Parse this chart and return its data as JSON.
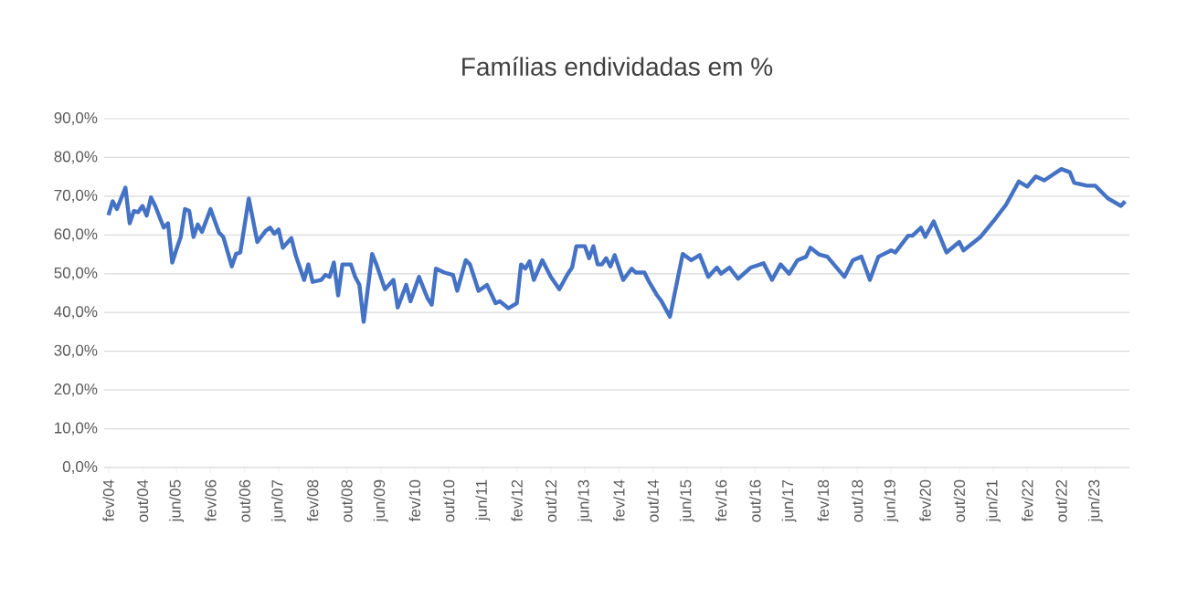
{
  "chart_data": {
    "type": "line",
    "title": "Famílias endividadas em %",
    "x": [
      "2004-02",
      "2004-03",
      "2004-04",
      "2004-06",
      "2004-07",
      "2004-08",
      "2004-09",
      "2004-10",
      "2004-11",
      "2004-12",
      "2005-01",
      "2005-03",
      "2005-04",
      "2005-05",
      "2005-06",
      "2005-07",
      "2005-08",
      "2005-09",
      "2005-10",
      "2005-11",
      "2005-12",
      "2006-02",
      "2006-04",
      "2006-05",
      "2006-07",
      "2006-08",
      "2006-09",
      "2006-11",
      "2007-01",
      "2007-03",
      "2007-04",
      "2007-05",
      "2007-06",
      "2007-07",
      "2007-09",
      "2007-10",
      "2007-12",
      "2008-01",
      "2008-02",
      "2008-04",
      "2008-05",
      "2008-06",
      "2008-07",
      "2008-08",
      "2008-09",
      "2008-11",
      "2008-12",
      "2009-01",
      "2009-02",
      "2009-04",
      "2009-05",
      "2009-07",
      "2009-09",
      "2009-10",
      "2009-12",
      "2010-01",
      "2010-03",
      "2010-05",
      "2010-06",
      "2010-07",
      "2010-09",
      "2010-11",
      "2010-12",
      "2011-02",
      "2011-03",
      "2011-05",
      "2011-07",
      "2011-09",
      "2011-10",
      "2011-12",
      "2012-02",
      "2012-03",
      "2012-04",
      "2012-05",
      "2012-06",
      "2012-08",
      "2012-10",
      "2012-12",
      "2013-02",
      "2013-03",
      "2013-04",
      "2013-06",
      "2013-07",
      "2013-08",
      "2013-09",
      "2013-10",
      "2013-11",
      "2013-12",
      "2014-01",
      "2014-03",
      "2014-05",
      "2014-06",
      "2014-08",
      "2014-09",
      "2014-11",
      "2014-12",
      "2015-02",
      "2015-05",
      "2015-07",
      "2015-09",
      "2015-11",
      "2016-01",
      "2016-02",
      "2016-04",
      "2016-06",
      "2016-09",
      "2016-12",
      "2017-02",
      "2017-04",
      "2017-06",
      "2017-08",
      "2017-10",
      "2017-11",
      "2018-01",
      "2018-03",
      "2018-07",
      "2018-09",
      "2018-11",
      "2019-01",
      "2019-03",
      "2019-06",
      "2019-07",
      "2019-10",
      "2019-11",
      "2020-01",
      "2020-02",
      "2020-04",
      "2020-07",
      "2020-10",
      "2020-11",
      "2021-03",
      "2021-06",
      "2021-09",
      "2021-12",
      "2022-02",
      "2022-04",
      "2022-06",
      "2022-10",
      "2022-12",
      "2023-01",
      "2023-04",
      "2023-06",
      "2023-09",
      "2023-12",
      "2024-01"
    ],
    "values": [
      65.1,
      68.7,
      66.7,
      72.2,
      63.0,
      66.2,
      65.9,
      67.5,
      65.0,
      69.7,
      67.5,
      61.9,
      63.0,
      52.9,
      56.3,
      59.5,
      66.7,
      66.2,
      59.5,
      62.7,
      60.8,
      66.7,
      60.6,
      59.5,
      51.9,
      55.1,
      55.5,
      69.4,
      58.2,
      61.1,
      61.9,
      60.3,
      61.4,
      56.7,
      59.2,
      54.8,
      48.4,
      52.4,
      47.9,
      48.4,
      49.7,
      49.2,
      52.9,
      44.4,
      52.4,
      52.4,
      49.2,
      47.1,
      37.6,
      55.1,
      52.4,
      46.0,
      48.4,
      41.3,
      47.1,
      42.9,
      49.2,
      43.7,
      42.0,
      51.3,
      50.3,
      49.7,
      45.6,
      53.5,
      52.4,
      45.6,
      47.1,
      42.4,
      42.9,
      41.1,
      42.4,
      52.4,
      51.3,
      53.2,
      48.4,
      53.5,
      49.2,
      46.0,
      50.0,
      51.6,
      57.1,
      57.1,
      54.0,
      57.1,
      52.4,
      52.4,
      54.0,
      51.9,
      54.8,
      48.4,
      51.3,
      50.3,
      50.3,
      48.1,
      44.4,
      42.9,
      38.9,
      55.1,
      53.5,
      54.8,
      49.2,
      51.6,
      50.0,
      51.6,
      48.7,
      51.6,
      52.7,
      48.4,
      52.4,
      50.0,
      53.5,
      54.4,
      56.7,
      55.0,
      54.4,
      49.2,
      53.5,
      54.4,
      48.4,
      54.4,
      56.0,
      55.5,
      59.8,
      59.8,
      61.9,
      59.5,
      63.5,
      55.5,
      58.2,
      56.0,
      59.5,
      63.5,
      67.8,
      73.8,
      72.5,
      75.1,
      74.1,
      77.0,
      76.2,
      73.5,
      72.7,
      72.7,
      69.4,
      67.5,
      68.7
    ],
    "color": "#4472c4",
    "xlim": [
      "2004-01",
      "2024-02"
    ],
    "xticks": [
      {
        "value": "2004-02",
        "label": "fev/04"
      },
      {
        "value": "2004-10",
        "label": "out/04"
      },
      {
        "value": "2005-06",
        "label": "jun/05"
      },
      {
        "value": "2006-02",
        "label": "fev/06"
      },
      {
        "value": "2006-10",
        "label": "out/06"
      },
      {
        "value": "2007-06",
        "label": "jun/07"
      },
      {
        "value": "2008-02",
        "label": "fev/08"
      },
      {
        "value": "2008-10",
        "label": "out/08"
      },
      {
        "value": "2009-06",
        "label": "jun/09"
      },
      {
        "value": "2010-02",
        "label": "fev/10"
      },
      {
        "value": "2010-10",
        "label": "out/10"
      },
      {
        "value": "2011-06",
        "label": "jun/11"
      },
      {
        "value": "2012-02",
        "label": "fev/12"
      },
      {
        "value": "2012-10",
        "label": "out/12"
      },
      {
        "value": "2013-06",
        "label": "jun/13"
      },
      {
        "value": "2014-02",
        "label": "fev/14"
      },
      {
        "value": "2014-10",
        "label": "out/14"
      },
      {
        "value": "2015-06",
        "label": "jun/15"
      },
      {
        "value": "2016-02",
        "label": "fev/16"
      },
      {
        "value": "2016-10",
        "label": "out/16"
      },
      {
        "value": "2017-06",
        "label": "jun/17"
      },
      {
        "value": "2018-02",
        "label": "fev/18"
      },
      {
        "value": "2018-10",
        "label": "out/18"
      },
      {
        "value": "2019-06",
        "label": "jun/19"
      },
      {
        "value": "2020-02",
        "label": "fev/20"
      },
      {
        "value": "2020-10",
        "label": "out/20"
      },
      {
        "value": "2021-06",
        "label": "jun/21"
      },
      {
        "value": "2022-02",
        "label": "fev/22"
      },
      {
        "value": "2022-10",
        "label": "out/22"
      },
      {
        "value": "2023-06",
        "label": "jun/23"
      }
    ],
    "ylim": [
      0,
      90
    ],
    "yticks": [
      {
        "value": 0,
        "label": "0,0%"
      },
      {
        "value": 10,
        "label": "10,0%"
      },
      {
        "value": 20,
        "label": "20,0%"
      },
      {
        "value": 30,
        "label": "30,0%"
      },
      {
        "value": 40,
        "label": "40,0%"
      },
      {
        "value": 50,
        "label": "50,0%"
      },
      {
        "value": 60,
        "label": "60,0%"
      },
      {
        "value": 70,
        "label": "70,0%"
      },
      {
        "value": 80,
        "label": "80,0%"
      },
      {
        "value": 90,
        "label": "90,0%"
      }
    ],
    "grid": "y",
    "marker": "none",
    "line_style": "solid"
  }
}
